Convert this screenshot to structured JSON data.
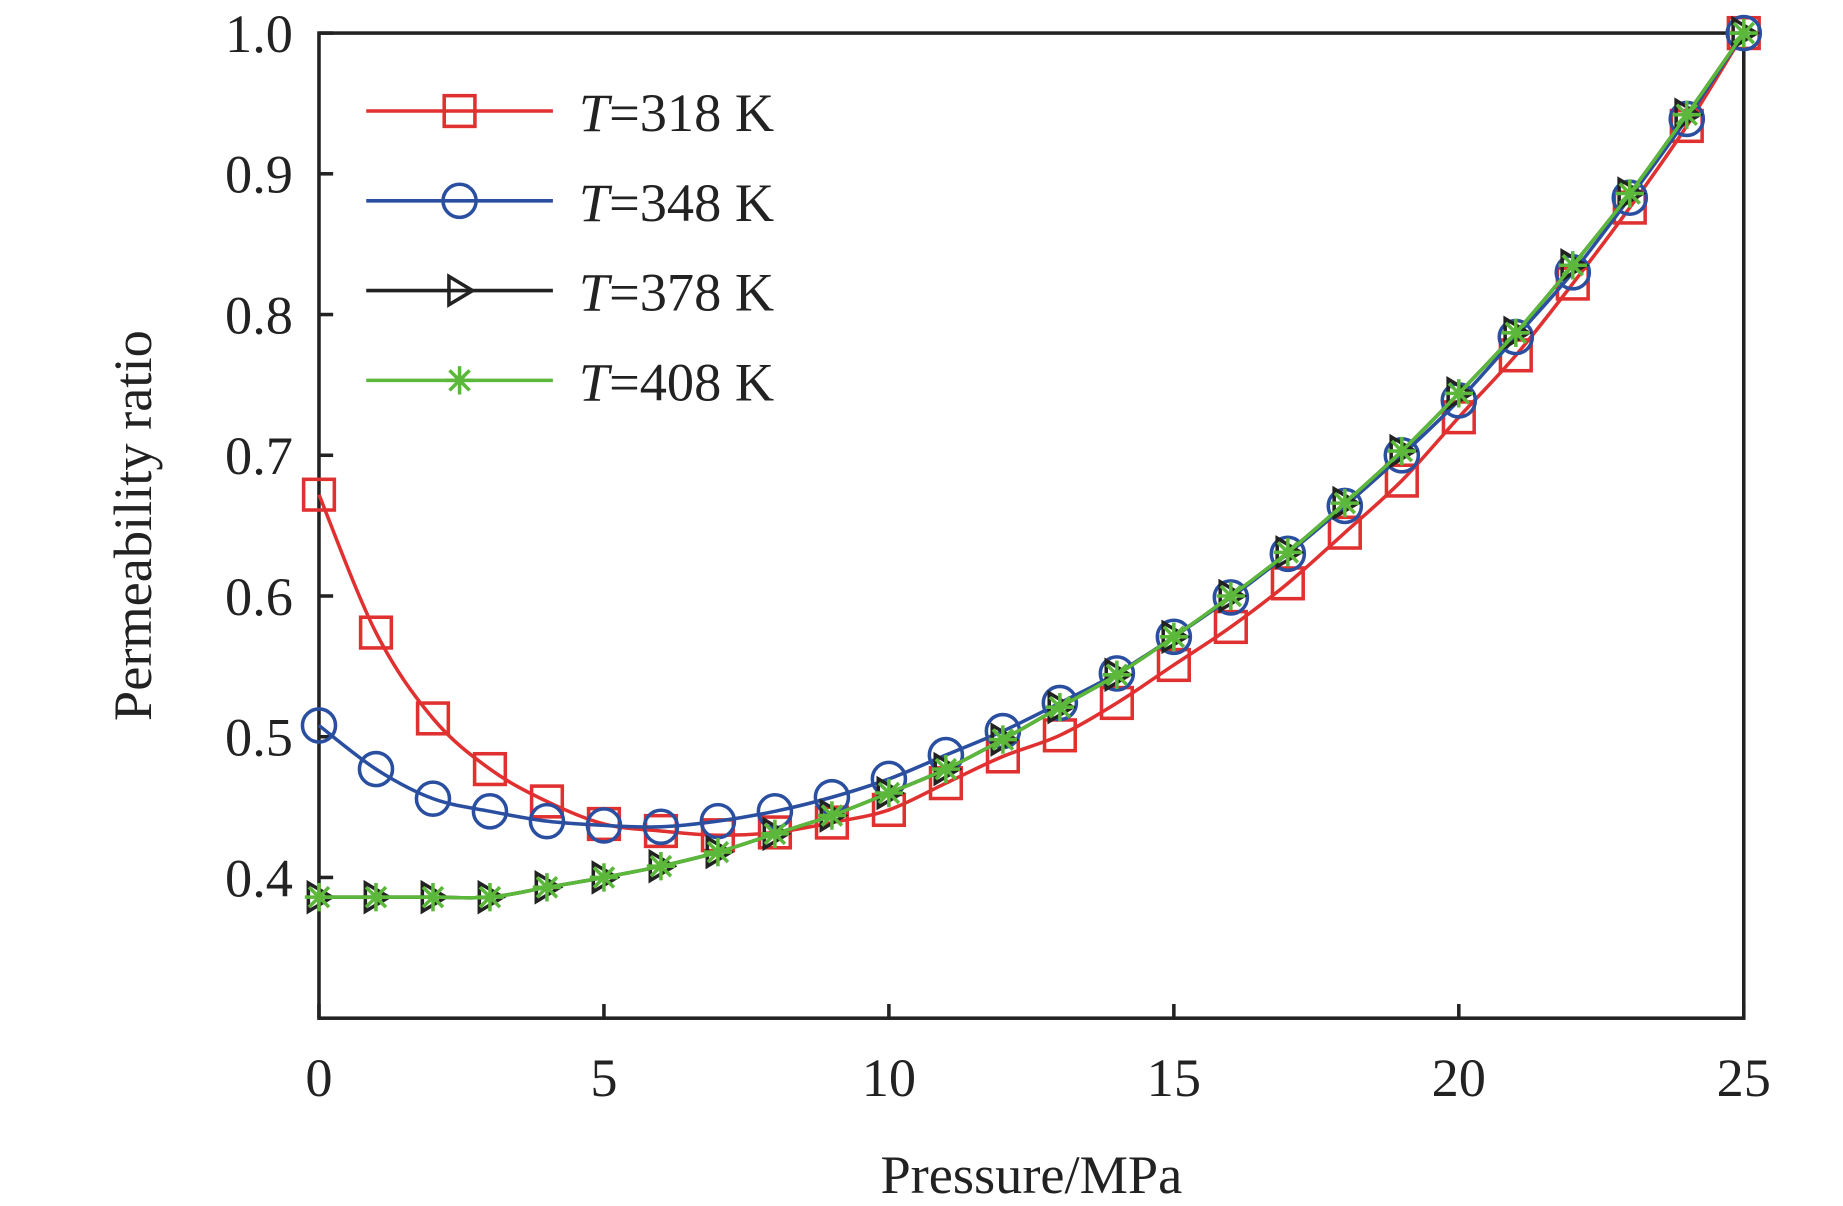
{
  "chart_data": {
    "type": "line",
    "title": "",
    "xlabel": "Pressure/MPa",
    "ylabel": "Permeability ratio",
    "xlim": [
      0,
      25
    ],
    "ylim": [
      0.3,
      1.0
    ],
    "xticks": [
      "0",
      "5",
      "10",
      "15",
      "20",
      "25"
    ],
    "yticks": [
      "0.4",
      "0.5",
      "0.6",
      "0.7",
      "0.8",
      "0.9",
      "1.0"
    ],
    "grid": false,
    "legend_position": "top-left",
    "x": [
      0,
      1,
      2,
      3,
      4,
      5,
      6,
      7,
      8,
      9,
      10,
      11,
      12,
      13,
      14,
      15,
      16,
      17,
      18,
      19,
      20,
      21,
      22,
      23,
      24,
      25
    ],
    "series": [
      {
        "name_italic": "T",
        "name_rest": "=318 K",
        "color": "#e03030",
        "marker": "square",
        "values": [
          0.672,
          0.574,
          0.513,
          0.477,
          0.454,
          0.438,
          0.433,
          0.43,
          0.432,
          0.439,
          0.448,
          0.467,
          0.486,
          0.501,
          0.524,
          0.551,
          0.578,
          0.609,
          0.645,
          0.682,
          0.727,
          0.771,
          0.822,
          0.876,
          0.934,
          1.0
        ]
      },
      {
        "name_italic": "T",
        "name_rest": "=348 K",
        "color": "#2b4fa0",
        "marker": "circle",
        "values": [
          0.508,
          0.477,
          0.456,
          0.447,
          0.44,
          0.437,
          0.436,
          0.44,
          0.447,
          0.457,
          0.47,
          0.487,
          0.504,
          0.524,
          0.545,
          0.571,
          0.599,
          0.63,
          0.664,
          0.7,
          0.739,
          0.784,
          0.83,
          0.883,
          0.939,
          1.0
        ]
      },
      {
        "name_italic": "T",
        "name_rest": "=378 K",
        "color": "#222222",
        "marker": "triangle-right",
        "values": [
          0.386,
          0.386,
          0.386,
          0.386,
          0.393,
          0.4,
          0.408,
          0.418,
          0.431,
          0.444,
          0.46,
          0.477,
          0.498,
          0.521,
          0.544,
          0.571,
          0.6,
          0.631,
          0.666,
          0.703,
          0.744,
          0.787,
          0.835,
          0.886,
          0.942,
          1.0
        ]
      },
      {
        "name_italic": "T",
        "name_rest": "=408 K",
        "color": "#5cb83a",
        "marker": "asterisk",
        "values": [
          0.386,
          0.386,
          0.386,
          0.386,
          0.393,
          0.4,
          0.408,
          0.418,
          0.431,
          0.444,
          0.46,
          0.477,
          0.498,
          0.521,
          0.544,
          0.571,
          0.6,
          0.631,
          0.666,
          0.703,
          0.744,
          0.787,
          0.835,
          0.886,
          0.942,
          1.0
        ]
      }
    ]
  }
}
